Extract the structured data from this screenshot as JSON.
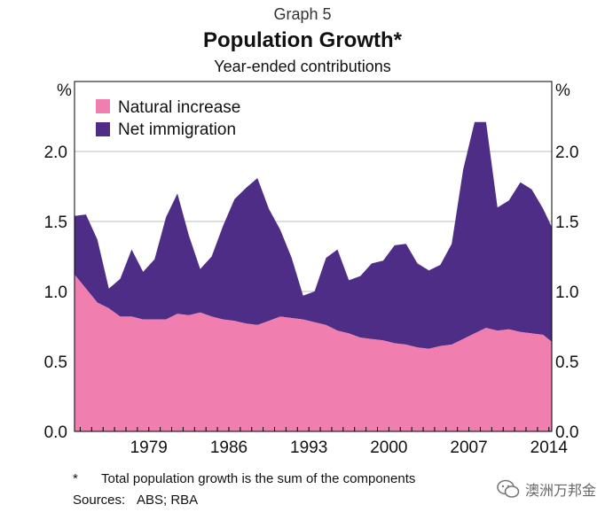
{
  "header": {
    "graph_label": "Graph 5",
    "title": "Population Growth*",
    "subtitle": "Year-ended contributions"
  },
  "footnote": {
    "marker": "*",
    "text": "Total population growth is the sum of the components"
  },
  "sources": {
    "label": "Sources:",
    "text": "ABS; RBA"
  },
  "watermark": {
    "text": "澳洲万邦金",
    "icon": "wechat-icon"
  },
  "colors": {
    "natural_increase": "#F07FB0",
    "net_immigration": "#4E2D87",
    "grid": "#bdbdbd"
  },
  "chart_data": {
    "type": "area",
    "stacked": true,
    "y_unit_left": "%",
    "y_unit_right": "%",
    "ylim": [
      0,
      2.5
    ],
    "yticks": [
      0.0,
      0.5,
      1.0,
      1.5,
      2.0
    ],
    "ytick_labels": [
      "0.0",
      "0.5",
      "1.0",
      "1.5",
      "2.0"
    ],
    "xlim": [
      1972.5,
      2014.25
    ],
    "xticks": [
      1979,
      1986,
      1993,
      2000,
      2007,
      2014
    ],
    "xtick_labels": [
      "1979",
      "1986",
      "1993",
      "2000",
      "2007",
      "2014"
    ],
    "grid": true,
    "legend_position": "top-left",
    "x": [
      1972.5,
      1973.5,
      1974.5,
      1975.5,
      1976.5,
      1977.5,
      1978.5,
      1979.5,
      1980.5,
      1981.5,
      1982.5,
      1983.5,
      1984.5,
      1985.5,
      1986.5,
      1987.5,
      1988.5,
      1989.5,
      1990.5,
      1991.5,
      1992.5,
      1993.5,
      1994.5,
      1995.5,
      1996.5,
      1997.5,
      1998.5,
      1999.5,
      2000.5,
      2001.5,
      2002.5,
      2003.5,
      2004.5,
      2005.5,
      2006.5,
      2007.5,
      2008.5,
      2009.5,
      2010.5,
      2011.5,
      2012.5,
      2013.5,
      2014.25
    ],
    "series": [
      {
        "name": "Natural increase",
        "values": [
          1.12,
          1.02,
          0.92,
          0.88,
          0.82,
          0.82,
          0.8,
          0.8,
          0.8,
          0.84,
          0.83,
          0.85,
          0.82,
          0.8,
          0.79,
          0.77,
          0.76,
          0.79,
          0.82,
          0.81,
          0.8,
          0.78,
          0.76,
          0.72,
          0.7,
          0.67,
          0.66,
          0.65,
          0.63,
          0.62,
          0.6,
          0.59,
          0.61,
          0.62,
          0.66,
          0.7,
          0.74,
          0.72,
          0.73,
          0.71,
          0.7,
          0.69,
          0.64
        ]
      },
      {
        "name": "Net immigration",
        "values": [
          0.42,
          0.53,
          0.45,
          0.14,
          0.27,
          0.48,
          0.34,
          0.43,
          0.73,
          0.86,
          0.57,
          0.31,
          0.43,
          0.67,
          0.87,
          0.97,
          1.05,
          0.8,
          0.62,
          0.43,
          0.17,
          0.22,
          0.48,
          0.58,
          0.38,
          0.44,
          0.54,
          0.57,
          0.7,
          0.72,
          0.6,
          0.56,
          0.58,
          0.72,
          1.21,
          1.51,
          1.47,
          0.88,
          0.92,
          1.07,
          1.03,
          0.9,
          0.82
        ]
      }
    ]
  }
}
